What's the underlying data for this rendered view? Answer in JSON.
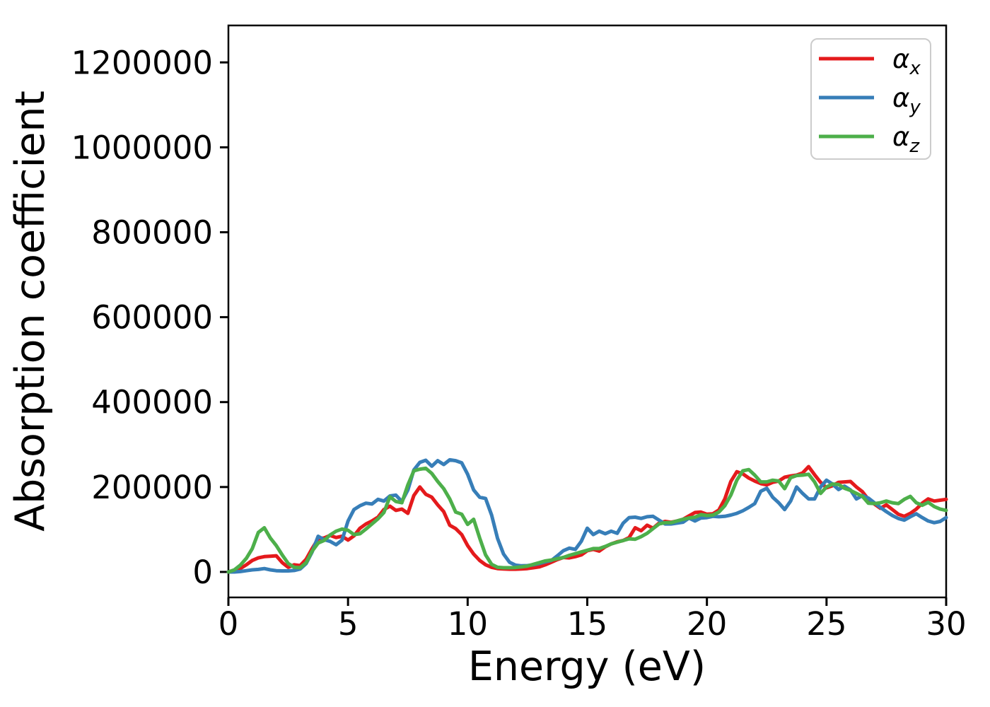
{
  "chart_data": {
    "type": "line",
    "title": "",
    "xlabel": "Energy (eV)",
    "ylabel": "Absorption coefficient",
    "xlim": [
      0,
      30
    ],
    "ylim": [
      -60000,
      1287000
    ],
    "grid": false,
    "legend_position": "upper right",
    "xticks": {
      "values": [
        0,
        5,
        10,
        15,
        20,
        25,
        30
      ],
      "labels": [
        "0",
        "5",
        "10",
        "15",
        "20",
        "25",
        "30"
      ]
    },
    "yticks": {
      "values": [
        0,
        200000,
        400000,
        600000,
        800000,
        1000000,
        1200000
      ],
      "labels": [
        "0",
        "200000",
        "400000",
        "600000",
        "800000",
        "1000000",
        "1200000"
      ]
    },
    "x": [
      0,
      0.25,
      0.5,
      0.75,
      1,
      1.25,
      1.5,
      1.75,
      2,
      2.25,
      2.5,
      2.75,
      3,
      3.25,
      3.5,
      3.75,
      4,
      4.25,
      4.5,
      4.75,
      5,
      5.25,
      5.5,
      5.75,
      6,
      6.25,
      6.5,
      6.75,
      7,
      7.25,
      7.5,
      7.75,
      8,
      8.25,
      8.5,
      8.75,
      9,
      9.25,
      9.5,
      9.75,
      10,
      10.25,
      10.5,
      10.75,
      11,
      11.25,
      11.5,
      11.75,
      12,
      12.25,
      12.5,
      12.75,
      13,
      13.25,
      13.5,
      13.75,
      14,
      14.25,
      14.5,
      14.75,
      15,
      15.25,
      15.5,
      15.75,
      16,
      16.25,
      16.5,
      16.75,
      17,
      17.25,
      17.5,
      17.75,
      18,
      18.25,
      18.5,
      18.75,
      19,
      19.25,
      19.5,
      19.75,
      20,
      20.25,
      20.5,
      20.75,
      21,
      21.25,
      21.5,
      21.75,
      22,
      22.25,
      22.5,
      22.75,
      23,
      23.25,
      23.5,
      23.75,
      24,
      24.25,
      24.5,
      24.75,
      25,
      25.25,
      25.5,
      25.75,
      26,
      26.25,
      26.5,
      26.75,
      27,
      27.25,
      27.5,
      27.75,
      28,
      28.25,
      28.5,
      28.75,
      29,
      29.25,
      29.5,
      29.75,
      30
    ],
    "series": [
      {
        "name": "alpha_x",
        "legend_symbol": "α",
        "legend_subscript": "x",
        "color": "#e41a1c",
        "values": [
          0,
          2000,
          8000,
          17000,
          27000,
          33000,
          36000,
          37000,
          38000,
          22000,
          11000,
          17000,
          15000,
          30000,
          55000,
          78000,
          80000,
          86000,
          81000,
          84000,
          75000,
          85000,
          103000,
          113000,
          120000,
          129000,
          147000,
          155000,
          145000,
          148000,
          138000,
          180000,
          200000,
          183000,
          176000,
          158000,
          142000,
          110000,
          102000,
          88000,
          62000,
          42000,
          27000,
          17000,
          11000,
          8000,
          7000,
          6500,
          6500,
          7000,
          8000,
          10000,
          12000,
          17000,
          23000,
          29000,
          34000,
          33000,
          36000,
          40000,
          50000,
          53000,
          49000,
          59000,
          66000,
          71000,
          74000,
          81000,
          104000,
          97000,
          110000,
          103000,
          115000,
          119000,
          117000,
          120000,
          124000,
          132000,
          140000,
          141000,
          136000,
          137000,
          146000,
          172000,
          213000,
          236000,
          231000,
          221000,
          214000,
          208000,
          205000,
          211000,
          214000,
          223000,
          226000,
          228000,
          233000,
          248000,
          229000,
          211000,
          198000,
          203000,
          211000,
          212000,
          213000,
          200000,
          189000,
          171000,
          160000,
          150000,
          158000,
          147000,
          136000,
          131000,
          138000,
          148000,
          162000,
          172000,
          167000,
          169000,
          171000
        ]
      },
      {
        "name": "alpha_y",
        "legend_symbol": "α",
        "legend_subscript": "y",
        "color": "#377eb8",
        "values": [
          0,
          0,
          1000,
          3000,
          5000,
          6000,
          8000,
          5000,
          3000,
          2500,
          2500,
          3500,
          7000,
          20000,
          47000,
          84000,
          76000,
          72000,
          64000,
          75000,
          120000,
          147000,
          156000,
          162000,
          160000,
          171000,
          167000,
          179000,
          181000,
          166000,
          193000,
          240000,
          258000,
          263000,
          249000,
          262000,
          253000,
          264000,
          262000,
          257000,
          230000,
          193000,
          176000,
          173000,
          134000,
          79000,
          42000,
          23000,
          16000,
          14500,
          15000,
          17000,
          20000,
          24000,
          27000,
          38000,
          50000,
          56000,
          53000,
          72000,
          103000,
          88000,
          96000,
          90000,
          96000,
          91000,
          115000,
          128000,
          129000,
          126000,
          130000,
          131000,
          122000,
          113000,
          113000,
          115000,
          117000,
          127000,
          120000,
          127000,
          128000,
          131000,
          130000,
          131000,
          134000,
          138000,
          144000,
          152000,
          161000,
          190000,
          197000,
          176000,
          163000,
          147000,
          167000,
          200000,
          185000,
          172000,
          172000,
          200000,
          216000,
          207000,
          194000,
          202000,
          193000,
          172000,
          180000,
          174000,
          163000,
          152000,
          142000,
          133000,
          126000,
          122000,
          130000,
          137000,
          128000,
          120000,
          116000,
          119000,
          128000
        ]
      },
      {
        "name": "alpha_z",
        "legend_symbol": "α",
        "legend_subscript": "z",
        "color": "#4daf4a",
        "values": [
          0,
          5000,
          16000,
          32000,
          55000,
          93000,
          104000,
          80000,
          62000,
          40000,
          20000,
          11000,
          10000,
          22000,
          49000,
          68000,
          74000,
          87000,
          96000,
          101000,
          98000,
          88000,
          90000,
          101000,
          113000,
          125000,
          140000,
          177000,
          166000,
          163000,
          205000,
          238000,
          242000,
          244000,
          232000,
          213000,
          196000,
          172000,
          141000,
          136000,
          112000,
          124000,
          80000,
          40000,
          18000,
          11000,
          10000,
          10000,
          10500,
          12000,
          14000,
          18000,
          22000,
          26000,
          28000,
          31000,
          34000,
          39000,
          43000,
          47000,
          51000,
          55000,
          55000,
          60000,
          66000,
          70000,
          74000,
          78000,
          77000,
          83000,
          91000,
          102000,
          113000,
          116000,
          116000,
          120000,
          124000,
          127000,
          129000,
          135000,
          133000,
          134000,
          141000,
          156000,
          181000,
          216000,
          238000,
          241000,
          228000,
          212000,
          212000,
          216000,
          214000,
          196000,
          222000,
          227000,
          228000,
          230000,
          212000,
          185000,
          200000,
          207000,
          206000,
          197000,
          192000,
          185000,
          178000,
          162000,
          161000,
          163000,
          167000,
          163000,
          161000,
          171000,
          178000,
          163000,
          157000,
          164000,
          154000,
          148000,
          145000
        ]
      }
    ]
  },
  "colors": {
    "axis": "#000000",
    "legend_border": "#cccccc",
    "background": "#ffffff"
  }
}
